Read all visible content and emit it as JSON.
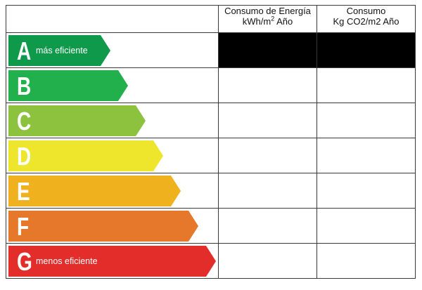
{
  "header": {
    "energy_line1": "Consumo de Energía",
    "energy_line2": "kWh/m",
    "energy_sup": "2",
    "energy_line3": " Año",
    "co2_line1": "Consumo",
    "co2_line2": "Kg CO2/m2 Año"
  },
  "ratings": [
    {
      "letter": "A",
      "tag": "más eficiente",
      "color": "#0f9a4b",
      "highlighted": true
    },
    {
      "letter": "B",
      "tag": "",
      "color": "#21b04c",
      "highlighted": false
    },
    {
      "letter": "C",
      "tag": "",
      "color": "#8dc23f",
      "highlighted": false
    },
    {
      "letter": "D",
      "tag": "",
      "color": "#ede62c",
      "highlighted": false
    },
    {
      "letter": "E",
      "tag": "",
      "color": "#f0b11f",
      "highlighted": false
    },
    {
      "letter": "F",
      "tag": "",
      "color": "#e5782a",
      "highlighted": false
    },
    {
      "letter": "G",
      "tag": "menos eficiente",
      "color": "#e22d2b",
      "highlighted": false
    }
  ]
}
